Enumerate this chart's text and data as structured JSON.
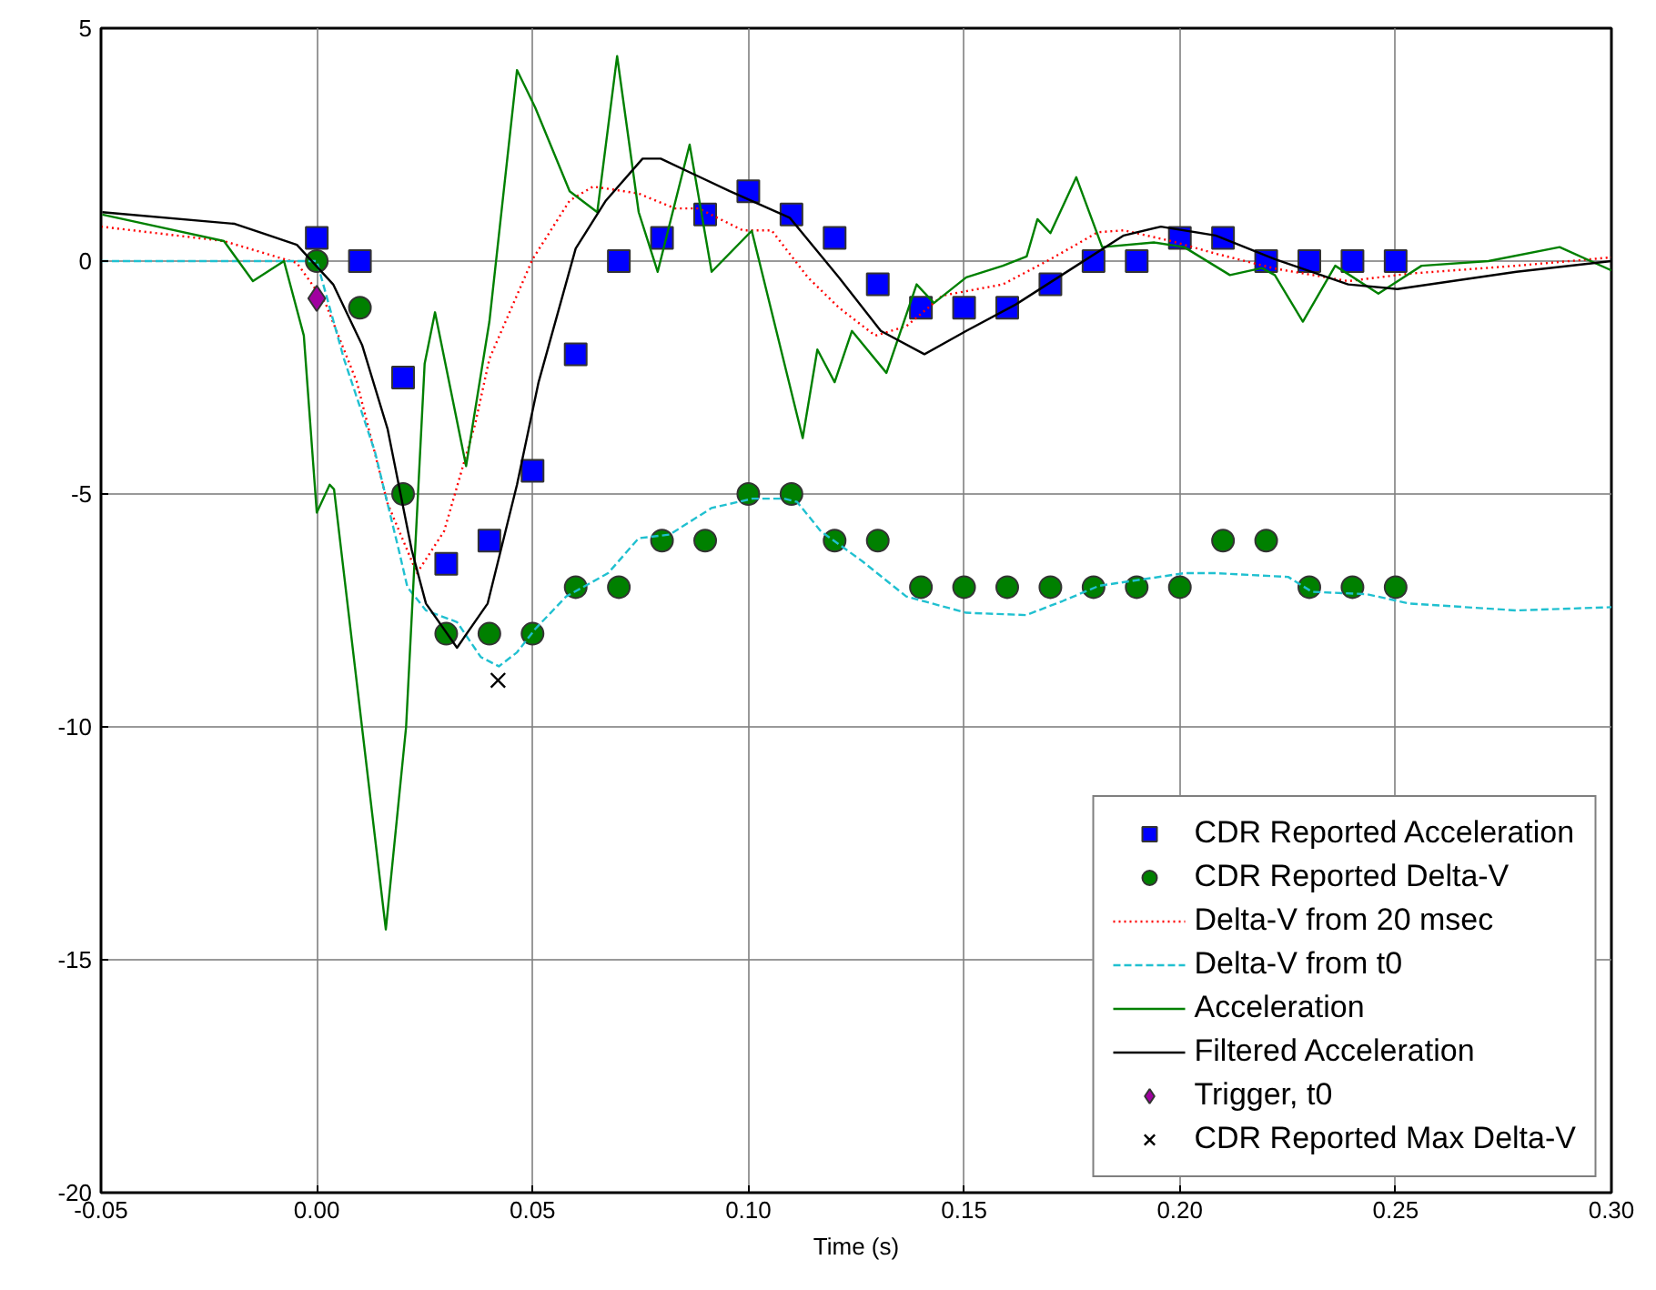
{
  "chart_data": {
    "type": "line",
    "xlabel": "Time (s)",
    "xlim": [
      -0.05,
      0.3
    ],
    "ylim": [
      -20,
      5
    ],
    "xticks": [
      -0.05,
      {
        "value": 0,
        "label": "0.00"
      },
      0.05,
      {
        "value": 0.1,
        "label": "0.10"
      },
      0.15,
      {
        "value": 0.2,
        "label": "0.20"
      },
      0.25,
      {
        "value": 0.3,
        "label": "0.30"
      }
    ],
    "yticks": [
      -20,
      -15,
      -10,
      -5,
      0,
      5
    ],
    "grid": true,
    "legend": "bottom right",
    "series": [
      {
        "name": "CDR Reported Acceleration",
        "type": "scatter",
        "marker": "square",
        "color": "#0000ff",
        "x": [
          0,
          0.01,
          0.02,
          0.03,
          0.04,
          0.05,
          0.06,
          0.07,
          0.08,
          0.09,
          0.1,
          0.11,
          0.12,
          0.13,
          0.14,
          0.15,
          0.16,
          0.17,
          0.18,
          0.19,
          0.2,
          0.21,
          0.22,
          0.23,
          0.24,
          0.25
        ],
        "values": [
          0.5,
          0,
          -2.5,
          -6.5,
          -6,
          -4.5,
          -2,
          0,
          0.5,
          1,
          1.5,
          1,
          0.5,
          -0.5,
          -1,
          -1,
          -1,
          -0.5,
          0,
          0,
          0.5,
          0.5,
          0,
          0,
          0,
          0
        ]
      },
      {
        "name": "CDR Reported Delta-V",
        "type": "scatter",
        "marker": "circle",
        "color": "#008000",
        "x": [
          0,
          0.01,
          0.02,
          0.03,
          0.04,
          0.05,
          0.06,
          0.07,
          0.08,
          0.09,
          0.1,
          0.11,
          0.12,
          0.13,
          0.14,
          0.15,
          0.16,
          0.17,
          0.18,
          0.19,
          0.2,
          0.21,
          0.22,
          0.23,
          0.24,
          0.25
        ],
        "values": [
          0,
          -1,
          -5,
          -8,
          -8,
          -8,
          -7,
          -7,
          -6,
          -6,
          -5,
          -5,
          -6,
          -6,
          -7,
          -7,
          -7,
          -7,
          -7,
          -7,
          -7,
          -6,
          -6,
          -7,
          -7,
          -7
        ]
      },
      {
        "name": "Delta-V from 20 msec",
        "line_style": "dotted",
        "color": "#ff0000",
        "x": [
          -0.05,
          -0.0215,
          -0.0046,
          0.002,
          0.0093,
          0.0164,
          0.0232,
          0.0295,
          0.0367,
          0.04,
          0.05,
          0.0586,
          0.064,
          0.0712,
          0.0746,
          0.083,
          0.0885,
          0.0987,
          0.1054,
          0.1138,
          0.121,
          0.1294,
          0.1366,
          0.145,
          0.159,
          0.17,
          0.181,
          0.187,
          0.198,
          0.2083,
          0.222,
          0.239,
          0.253,
          0.278,
          0.3
        ],
        "values": [
          0.74,
          0.43,
          -0.04,
          -0.9,
          -2.6,
          -5.2,
          -6.7,
          -5.8,
          -3.5,
          -2.1,
          0.04,
          1.3,
          1.6,
          1.5,
          1.45,
          1.13,
          1.13,
          0.66,
          0.66,
          -0.35,
          -1.0,
          -1.6,
          -1.4,
          -0.74,
          -0.5,
          0.04,
          0.62,
          0.66,
          0.43,
          0.16,
          -0.16,
          -0.43,
          -0.27,
          -0.1,
          0.08
        ]
      },
      {
        "name": "Delta-V from t0",
        "line_style": "dashed",
        "color": "#20c0d0",
        "x": [
          -0.05,
          0,
          0.0063,
          0.0135,
          0.019,
          0.021,
          0.0253,
          0.0325,
          0.038,
          0.0422,
          0.0464,
          0.0506,
          0.0578,
          0.0675,
          0.0746,
          0.0818,
          0.0915,
          0.101,
          0.1083,
          0.1113,
          0.1168,
          0.1265,
          0.1366,
          0.1505,
          0.1644,
          0.1728,
          0.1813,
          0.2011,
          0.2083,
          0.2251,
          0.2306,
          0.2433,
          0.253,
          0.278,
          0.3
        ],
        "values": [
          0,
          0,
          -2.1,
          -4.1,
          -6.2,
          -7.0,
          -7.5,
          -7.75,
          -8.5,
          -8.7,
          -8.4,
          -7.9,
          -7.2,
          -6.7,
          -5.95,
          -5.87,
          -5.3,
          -5.1,
          -5.1,
          -5.17,
          -5.8,
          -6.45,
          -7.2,
          -7.55,
          -7.6,
          -7.3,
          -6.97,
          -6.7,
          -6.7,
          -6.78,
          -7.1,
          -7.15,
          -7.35,
          -7.5,
          -7.43
        ]
      },
      {
        "name": "Acceleration",
        "line_style": "solid",
        "color": "#008000",
        "x": [
          -0.0497,
          -0.0215,
          -0.0148,
          -0.0076,
          -0.003,
          0,
          0.003,
          0.004,
          0.016,
          0.0207,
          0.025,
          0.0274,
          0.0346,
          0.04,
          0.0464,
          0.0506,
          0.0586,
          0.065,
          0.0696,
          0.0746,
          0.079,
          0.0864,
          0.0915,
          0.1008,
          0.1126,
          0.116,
          0.12,
          0.124,
          0.132,
          0.139,
          0.143,
          0.1505,
          0.159,
          0.1645,
          0.167,
          0.17,
          0.176,
          0.182,
          0.194,
          0.201,
          0.2116,
          0.219,
          0.222,
          0.2285,
          0.236,
          0.246,
          0.256,
          0.2715,
          0.288,
          0.3
        ],
        "values": [
          1.0,
          0.43,
          -0.43,
          0,
          -1.6,
          -5.4,
          -4.8,
          -4.9,
          -14.35,
          -10,
          -2.2,
          -1.1,
          -4.4,
          -1.3,
          4.1,
          3.3,
          1.5,
          1.05,
          4.4,
          1.05,
          -0.23,
          2.5,
          -0.23,
          0.65,
          -3.8,
          -1.9,
          -2.6,
          -1.5,
          -2.4,
          -0.5,
          -0.9,
          -0.35,
          -0.1,
          0.1,
          0.9,
          0.6,
          1.8,
          0.3,
          0.4,
          0.3,
          -0.3,
          -0.15,
          -0.3,
          -1.3,
          -0.1,
          -0.7,
          -0.1,
          0,
          0.3,
          -0.2
        ]
      },
      {
        "name": "Filtered Acceleration",
        "line_style": "solid",
        "color": "#000000",
        "x": [
          -0.0497,
          -0.019,
          -0.0046,
          0.0038,
          0.0105,
          0.0164,
          0.022,
          0.0253,
          0.0325,
          0.0396,
          0.0464,
          0.0514,
          0.06,
          0.067,
          0.0755,
          0.0797,
          0.0957,
          0.1096,
          0.121,
          0.1307,
          0.1408,
          0.1505,
          0.162,
          0.176,
          0.187,
          0.1956,
          0.2083,
          0.222,
          0.239,
          0.2504,
          0.278,
          0.3
        ],
        "values": [
          1.05,
          0.8,
          0.35,
          -0.5,
          -1.8,
          -3.6,
          -6.2,
          -7.35,
          -8.3,
          -7.35,
          -4.8,
          -2.6,
          0.27,
          1.3,
          2.2,
          2.2,
          1.5,
          0.93,
          -0.35,
          -1.5,
          -2.0,
          -1.5,
          -0.93,
          -0.1,
          0.55,
          0.74,
          0.55,
          0.04,
          -0.5,
          -0.6,
          -0.23,
          0
        ]
      },
      {
        "name": "Trigger, t0",
        "type": "scatter",
        "marker": "diamond",
        "color": "#a000a0",
        "x": [
          0
        ],
        "values": [
          -0.8
        ]
      },
      {
        "name": "CDR Reported Max Delta-V",
        "type": "scatter",
        "marker": "cross",
        "color": "#000000",
        "x": [
          0.042
        ],
        "values": [
          -9
        ]
      }
    ]
  }
}
